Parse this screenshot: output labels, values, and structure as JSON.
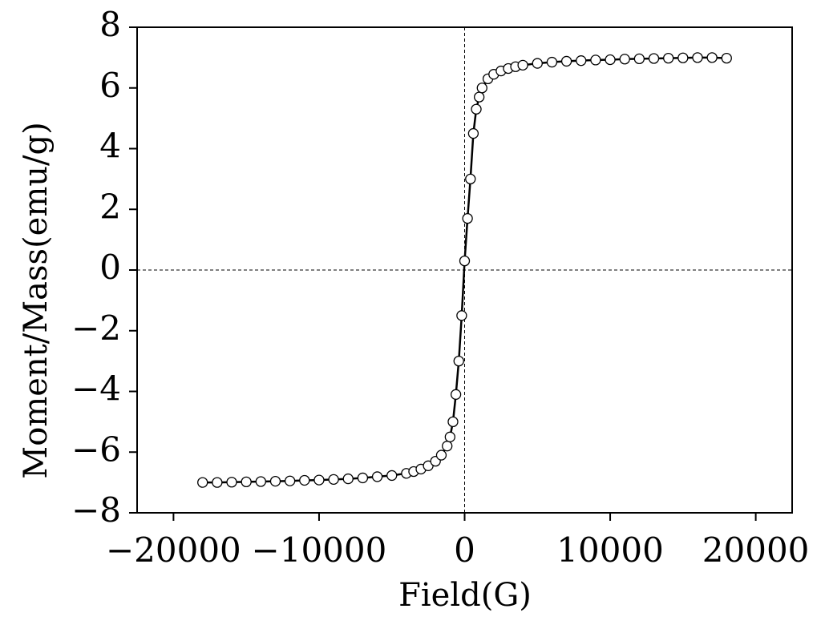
{
  "chart_data": {
    "type": "line",
    "xlabel": "Field(G)",
    "ylabel": "Moment/Mass(emu/g)",
    "x": [
      -18000,
      -17000,
      -16000,
      -15000,
      -14000,
      -13000,
      -12000,
      -11000,
      -10000,
      -9000,
      -8000,
      -7000,
      -6000,
      -5000,
      -4000,
      -3500,
      -3000,
      -2500,
      -2000,
      -1600,
      -1200,
      -1000,
      -800,
      -600,
      -400,
      -200,
      0,
      200,
      400,
      600,
      800,
      1000,
      1200,
      1600,
      2000,
      2500,
      3000,
      3500,
      4000,
      5000,
      6000,
      7000,
      8000,
      9000,
      10000,
      11000,
      12000,
      13000,
      14000,
      15000,
      16000,
      17000,
      18000
    ],
    "values": [
      -7.0,
      -7.0,
      -6.99,
      -6.98,
      -6.97,
      -6.96,
      -6.95,
      -6.93,
      -6.92,
      -6.9,
      -6.88,
      -6.85,
      -6.81,
      -6.77,
      -6.7,
      -6.64,
      -6.56,
      -6.45,
      -6.3,
      -6.1,
      -5.8,
      -5.5,
      -5.0,
      -4.1,
      -3.0,
      -1.5,
      0.3,
      1.7,
      3.0,
      4.5,
      5.3,
      5.7,
      6.0,
      6.3,
      6.45,
      6.56,
      6.64,
      6.7,
      6.75,
      6.81,
      6.85,
      6.88,
      6.9,
      6.92,
      6.93,
      6.95,
      6.96,
      6.97,
      6.98,
      6.99,
      7.0,
      7.0,
      6.98
    ],
    "color": "#000000",
    "marker_fill": "#ffffff",
    "xlim": [
      -22500,
      22500
    ],
    "xticks": [
      {
        "value": -20000,
        "label": "−20000"
      },
      {
        "value": -10000,
        "label": "−10000"
      },
      0,
      10000,
      20000
    ],
    "ylim": [
      -8,
      8
    ],
    "yticks": [
      {
        "value": -8,
        "label": "−8"
      },
      {
        "value": -6,
        "label": "−6"
      },
      {
        "value": -4,
        "label": "−4"
      },
      {
        "value": -2,
        "label": "−2"
      },
      0,
      2,
      4,
      6,
      8
    ],
    "zero_lines": true
  }
}
